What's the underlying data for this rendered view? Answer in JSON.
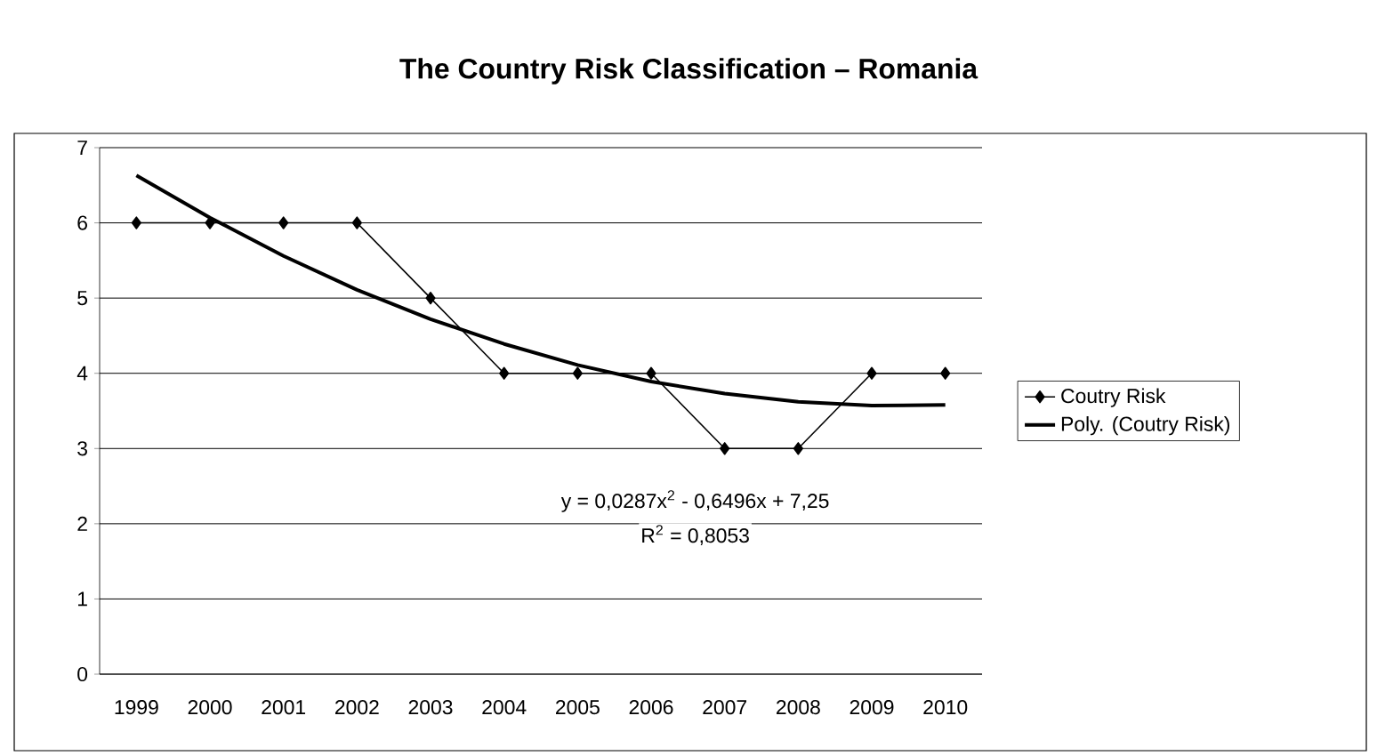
{
  "chart_data": {
    "type": "line",
    "title": "The Country Risk Classification – Romania",
    "categories": [
      "1999",
      "2000",
      "2001",
      "2002",
      "2003",
      "2004",
      "2005",
      "2006",
      "2007",
      "2008",
      "2009",
      "2010"
    ],
    "series": [
      {
        "name": "Coutry Risk",
        "color": "#000000",
        "marker": "diamond",
        "values": [
          6,
          6,
          6,
          6,
          5,
          4,
          4,
          4,
          3,
          3,
          4,
          4
        ]
      },
      {
        "name": "Poly. (Coutry Risk)",
        "color": "#000000",
        "marker": "none",
        "values": [
          6.63,
          6.07,
          5.56,
          5.11,
          4.72,
          4.39,
          4.11,
          3.89,
          3.73,
          3.62,
          3.57,
          3.58
        ]
      }
    ],
    "ylim": [
      0,
      7
    ],
    "yticks": [
      0,
      1,
      2,
      3,
      4,
      5,
      6,
      7
    ],
    "grid": "y",
    "legend": "right",
    "annotations": [
      "y = 0,0287x$^{2}$ - 0,6496x + 7,25",
      "R$^{2}$ = 0,8053"
    ]
  }
}
